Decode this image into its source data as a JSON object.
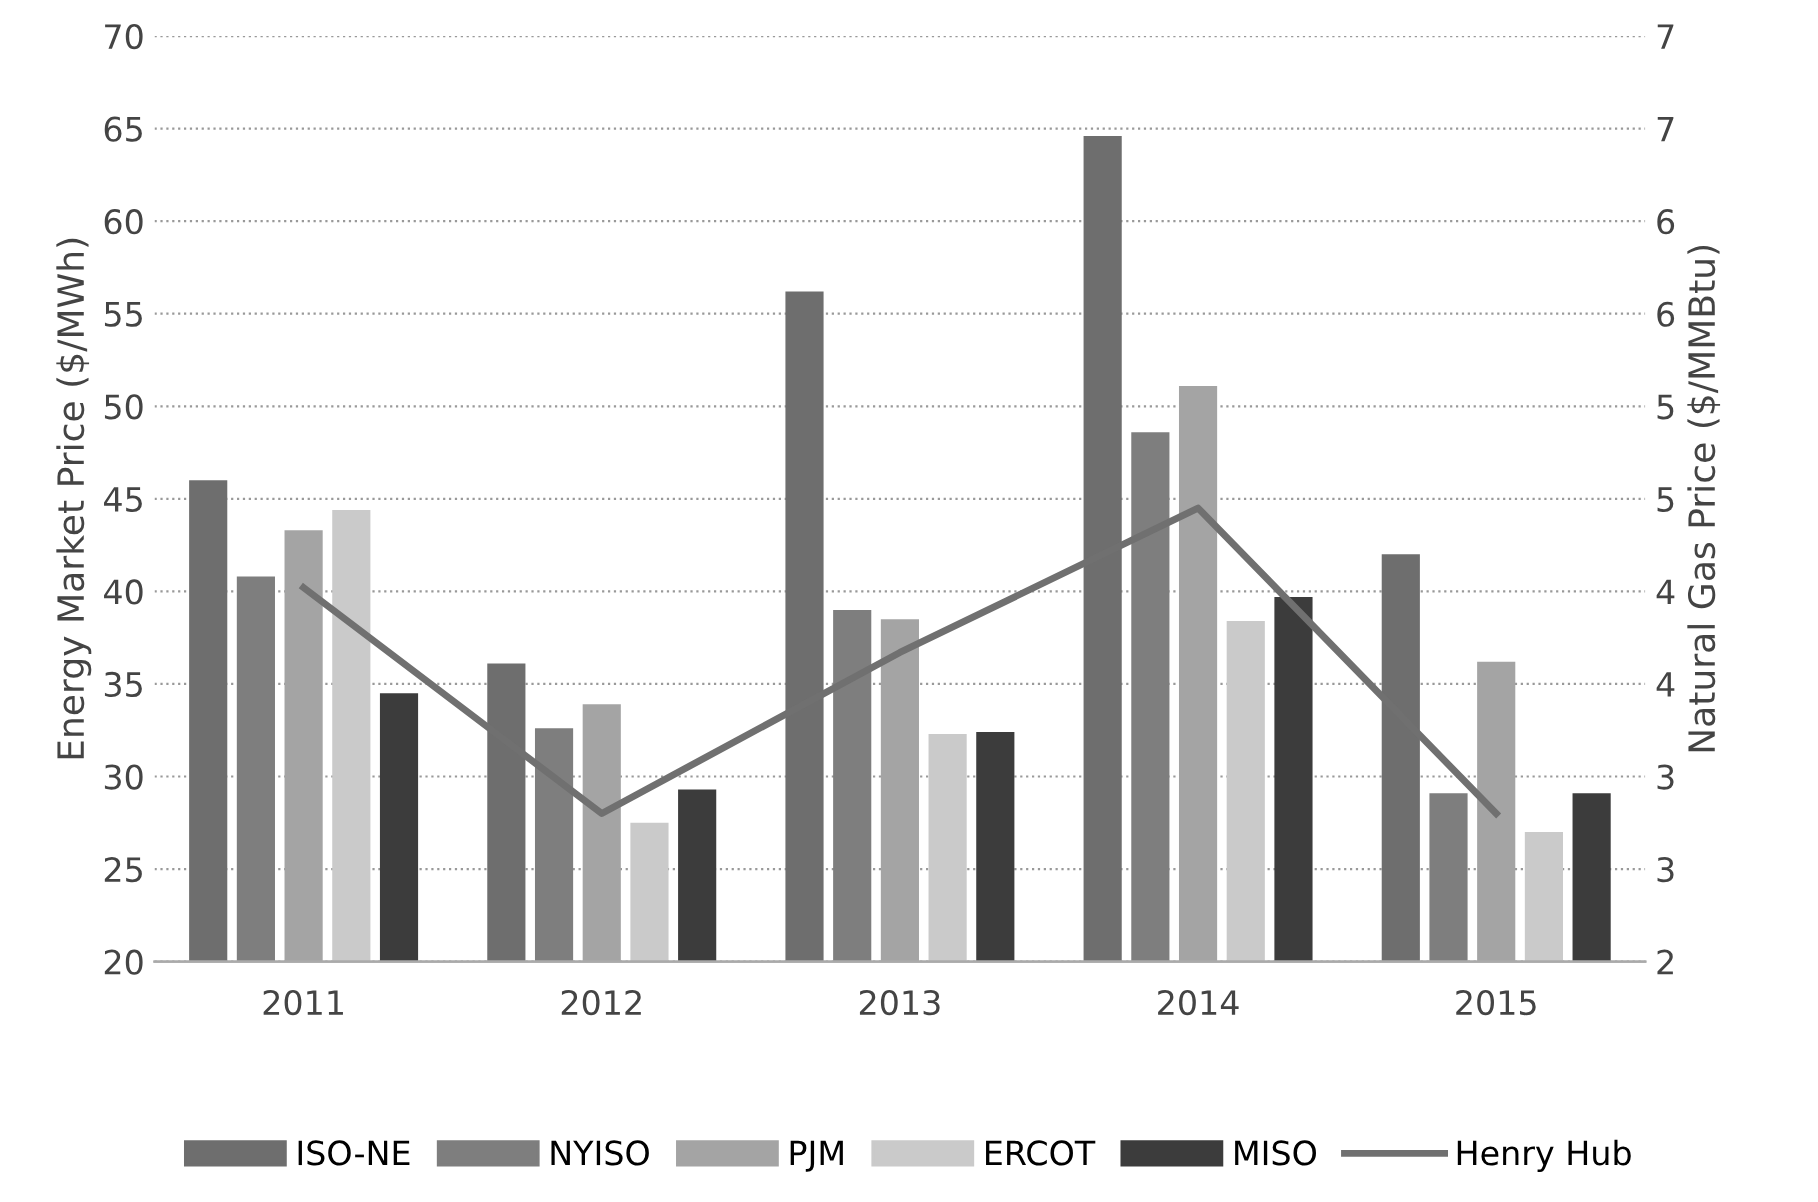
{
  "chart_data": {
    "type": "bar",
    "ylabel": "Energy Market Price ($/MWh)",
    "y2label": "Natural Gas Price ($/MMBtu)",
    "categories": [
      "2011",
      "2012",
      "2013",
      "2014",
      "2015"
    ],
    "series": [
      {
        "name": "ISO-NE",
        "color": "#6e6e6e",
        "values": [
          46.0,
          36.1,
          56.2,
          64.6,
          42.0
        ]
      },
      {
        "name": "NYISO",
        "color": "#7e7e7e",
        "values": [
          40.8,
          32.6,
          39.0,
          48.6,
          29.1
        ]
      },
      {
        "name": "PJM",
        "color": "#a4a4a4",
        "values": [
          43.3,
          33.9,
          38.5,
          51.1,
          36.2
        ]
      },
      {
        "name": "ERCOT",
        "color": "#cacaca",
        "values": [
          44.4,
          27.5,
          32.3,
          38.4,
          27.0
        ]
      },
      {
        "name": "MISO",
        "color": "#3c3c3c",
        "values": [
          34.5,
          29.3,
          32.4,
          39.7,
          29.1
        ]
      },
      {
        "name": "Henry Hub",
        "type": "line",
        "axis": "y2",
        "color": "#707070",
        "values": [
          4.02,
          2.8,
          3.67,
          4.45,
          2.8
        ]
      }
    ],
    "ylim": [
      20,
      70
    ],
    "yticks": [
      20,
      25,
      30,
      35,
      40,
      45,
      50,
      55,
      60,
      65,
      70
    ],
    "y2lim": [
      2,
      7
    ],
    "y2ticks": [
      2,
      {
        "value": 2.5,
        "label": "3"
      },
      3,
      {
        "value": 3.5,
        "label": "4"
      },
      4,
      {
        "value": 4.5,
        "label": "5"
      },
      5,
      {
        "value": 5.5,
        "label": "6"
      },
      6,
      {
        "value": 6.5,
        "label": "7"
      },
      7
    ],
    "grid": "y",
    "legend": "bottom",
    "marker": "none",
    "line_style": "solid"
  }
}
